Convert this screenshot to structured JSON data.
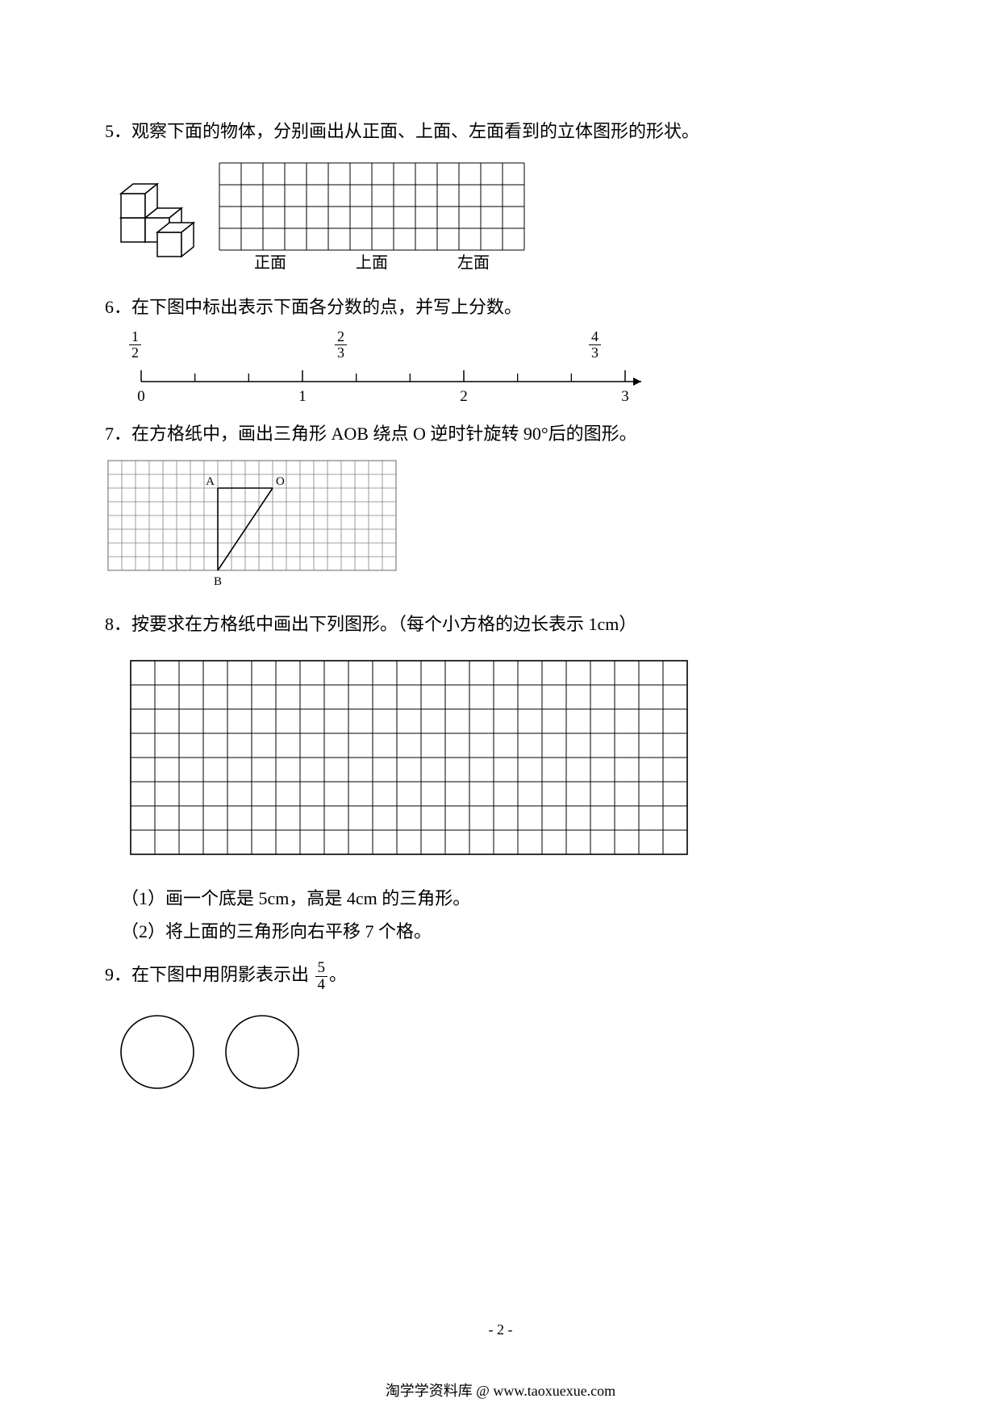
{
  "q5": {
    "number": "5．",
    "text": "观察下面的物体，分别画出从正面、上面、左面看到的立体图形的形状。",
    "grid": {
      "cols": 14,
      "rows": 4,
      "cell": 27
    },
    "labels": [
      "正面",
      "上面",
      "左面"
    ],
    "stroke": "#000000",
    "fill": "#ffffff"
  },
  "q6": {
    "number": "6．",
    "text": "在下图中标出表示下面各分数的点，并写上分数。",
    "fractions": [
      {
        "num": "1",
        "den": "2"
      },
      {
        "num": "2",
        "den": "3"
      },
      {
        "num": "4",
        "den": "3"
      }
    ],
    "numberline": {
      "major": [
        0,
        1,
        2,
        3
      ],
      "subdivisions": 3,
      "stroke": "#000000"
    }
  },
  "q7": {
    "number": "7．",
    "text": "在方格纸中，画出三角形 AOB 绕点 O 逆时针旋转 90°后的图形。",
    "grid": {
      "cols": 21,
      "rows": 8,
      "cell": 17
    },
    "points": {
      "A": {
        "gx": 8,
        "gy": 2,
        "label": "A"
      },
      "O": {
        "gx": 12,
        "gy": 2,
        "label": "O"
      },
      "B": {
        "gx": 8,
        "gy": 8,
        "label": "B"
      }
    },
    "stroke_grid": "#808080",
    "stroke_tri": "#000000"
  },
  "q8": {
    "number": "8．",
    "text": "按要求在方格纸中画出下列图形。（每个小方格的边长表示 1cm）",
    "grid": {
      "cols": 23,
      "rows": 8,
      "cell": 30
    },
    "sub1_label": "（1）",
    "sub1_text": "画一个底是 5cm，高是 4cm 的三角形。",
    "sub2_label": "（2）",
    "sub2_text": "将上面的三角形向右平移 7 个格。",
    "stroke": "#000000"
  },
  "q9": {
    "number": "9．",
    "text_before": "在下图中用阴影表示出",
    "fraction": {
      "num": "5",
      "den": "4"
    },
    "text_after": "。",
    "circles": {
      "count": 2,
      "r": 45,
      "stroke": "#000000",
      "fill": "none"
    }
  },
  "pagenum": "- 2 -",
  "footer": "淘学学资料库 @ www.taoxuexue.com"
}
